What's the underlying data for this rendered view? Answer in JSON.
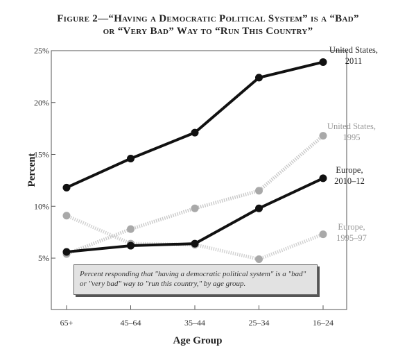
{
  "title": {
    "line1": "Figure 2—“Having a Democratic Political System” is a “Bad”",
    "line2": "or “Very Bad” Way to “Run This Country”"
  },
  "note": "Percent responding that \"having a democratic political system\" is a \"bad\" or \"very bad\" way to \"run this country,\" by age group.",
  "chart_data": {
    "type": "line",
    "categories": [
      "65+",
      "45–64",
      "35–44",
      "25–34",
      "16–24"
    ],
    "xlabel": "Age Group",
    "ylabel": "Percent",
    "yticks": [
      "5%",
      "10%",
      "15%",
      "20%",
      "25%"
    ],
    "ytick_values": [
      5,
      10,
      15,
      20,
      25
    ],
    "ylim": [
      0,
      25
    ],
    "grid": false,
    "series": [
      {
        "name": "United States, 2011",
        "label_lines": [
          "United States,",
          "2011"
        ],
        "values": [
          11.8,
          14.6,
          17.1,
          22.4,
          23.9
        ],
        "color": "#111111",
        "style": "solid"
      },
      {
        "name": "United States, 1995",
        "label_lines": [
          "United States,",
          "1995"
        ],
        "values": [
          5.4,
          7.8,
          9.8,
          11.5,
          16.8
        ],
        "color": "#c8c8c8",
        "style": "dotted"
      },
      {
        "name": "Europe, 2010–12",
        "label_lines": [
          "Europe,",
          "2010–12"
        ],
        "values": [
          5.6,
          6.2,
          6.4,
          9.8,
          12.7
        ],
        "color": "#111111",
        "style": "solid"
      },
      {
        "name": "Europe, 1995–97",
        "label_lines": [
          "Europe,",
          "1995–97"
        ],
        "values": [
          9.1,
          6.4,
          6.3,
          4.9,
          7.3
        ],
        "color": "#d0d0d0",
        "style": "dotted"
      }
    ]
  }
}
